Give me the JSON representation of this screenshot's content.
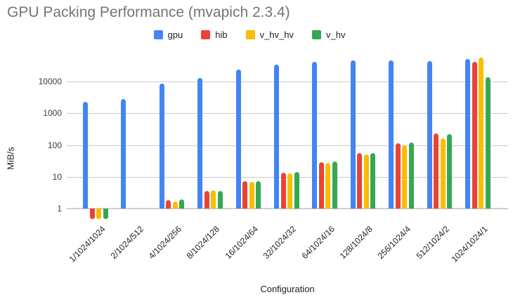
{
  "title": "GPU Packing Performance (mvapich 2.3.4)",
  "chart_data": {
    "type": "bar",
    "title": "GPU Packing Performance (mvapich 2.3.4)",
    "xlabel": "Configuration",
    "ylabel": "MiB/s",
    "y_scale": "log",
    "grid": true,
    "legend_position": "top",
    "ylim": [
      0.4,
      60000
    ],
    "y_ticks": [
      {
        "value": 1,
        "label": "1"
      },
      {
        "value": 10,
        "label": "10"
      },
      {
        "value": 100,
        "label": "100"
      },
      {
        "value": 1000,
        "label": "1000"
      },
      {
        "value": 10000,
        "label": "10000"
      }
    ],
    "categories": [
      "1/1024/1024",
      "2/1024/512",
      "4/1024/256",
      "8/1024/128",
      "16/1024/64",
      "32/1024/32",
      "64/1024/16",
      "128/1024/8",
      "256/1024/4",
      "512/1024/2",
      "1024/1024/1"
    ],
    "series": [
      {
        "name": "gpu",
        "color": "#4285F4",
        "values": [
          2250,
          2840,
          8700,
          12700,
          23700,
          34000,
          42000,
          45500,
          47000,
          44000,
          52000
        ]
      },
      {
        "name": "hib",
        "color": "#EA4335",
        "values": [
          0.47,
          null,
          1.8,
          3.6,
          7.2,
          13.5,
          29,
          57,
          115,
          235,
          42000
        ]
      },
      {
        "name": "v_hv_hv",
        "color": "#FBBC04",
        "values": [
          0.47,
          null,
          1.65,
          3.7,
          7.0,
          12.5,
          28,
          50,
          100,
          165,
          55000
        ]
      },
      {
        "name": "v_hv",
        "color": "#34A853",
        "values": [
          0.47,
          null,
          1.9,
          3.6,
          7.4,
          14,
          30,
          57,
          118,
          215,
          13500
        ]
      }
    ]
  }
}
